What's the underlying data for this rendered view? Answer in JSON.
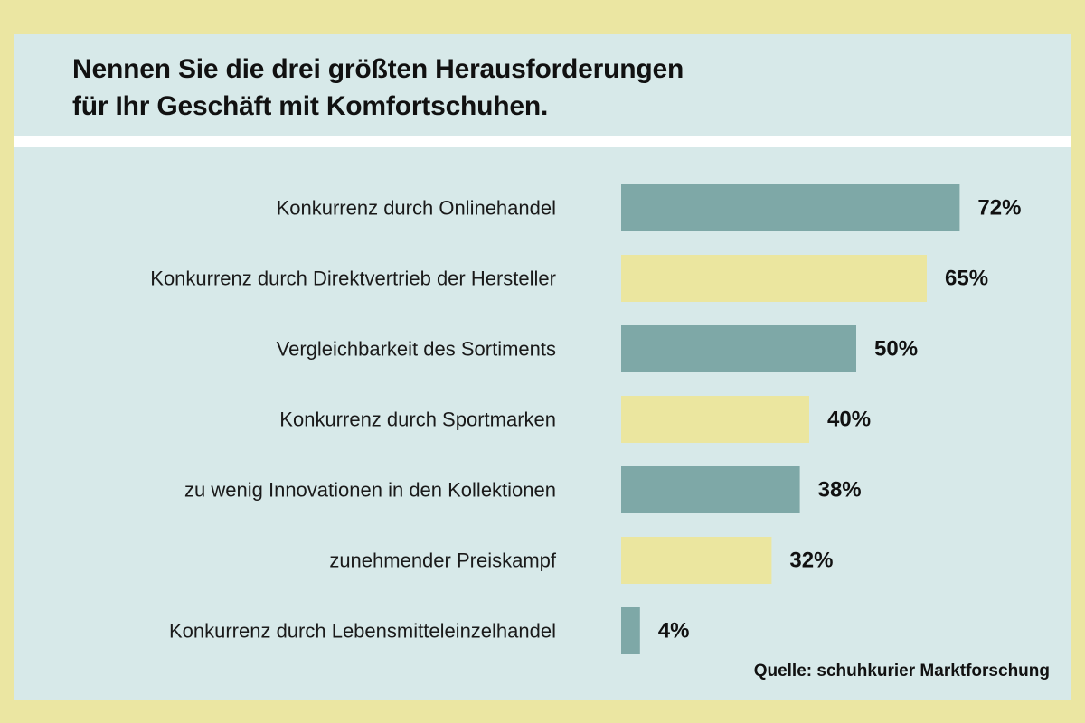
{
  "title_lines": [
    "Nennen Sie die drei größten Herausforderungen",
    "für Ihr Geschäft mit Komfortschuhen."
  ],
  "source": "Quelle: schuhkurier Marktforschung",
  "colors": {
    "background": "#ebe6a2",
    "panel": "#d7e9e9",
    "bar_teal": "#7ea8a7",
    "bar_yellow": "#ebe69f",
    "divider": "#ffffff"
  },
  "chart_data": {
    "type": "bar",
    "orientation": "horizontal",
    "title": "Nennen Sie die drei größten Herausforderungen für Ihr Geschäft mit Komfortschuhen.",
    "categories": [
      "Konkurrenz durch Onlinehandel",
      "Konkurrenz durch Direktvertrieb der Hersteller",
      "Vergleichbarkeit des Sortiments",
      "Konkurrenz durch Sportmarken",
      "zu wenig Innovationen in den Kollektionen",
      "zunehmender Preiskampf",
      "Konkurrenz durch Lebensmitteleinzelhandel"
    ],
    "values": [
      72,
      65,
      50,
      40,
      38,
      32,
      4
    ],
    "value_labels": [
      "72%",
      "65%",
      "50%",
      "40%",
      "38%",
      "32%",
      "4%"
    ],
    "unit": "%",
    "bar_colors": [
      "#7ea8a7",
      "#ebe69f",
      "#7ea8a7",
      "#ebe69f",
      "#7ea8a7",
      "#ebe69f",
      "#7ea8a7"
    ],
    "xlim": [
      0,
      100
    ],
    "grid": false,
    "legend": "none"
  }
}
